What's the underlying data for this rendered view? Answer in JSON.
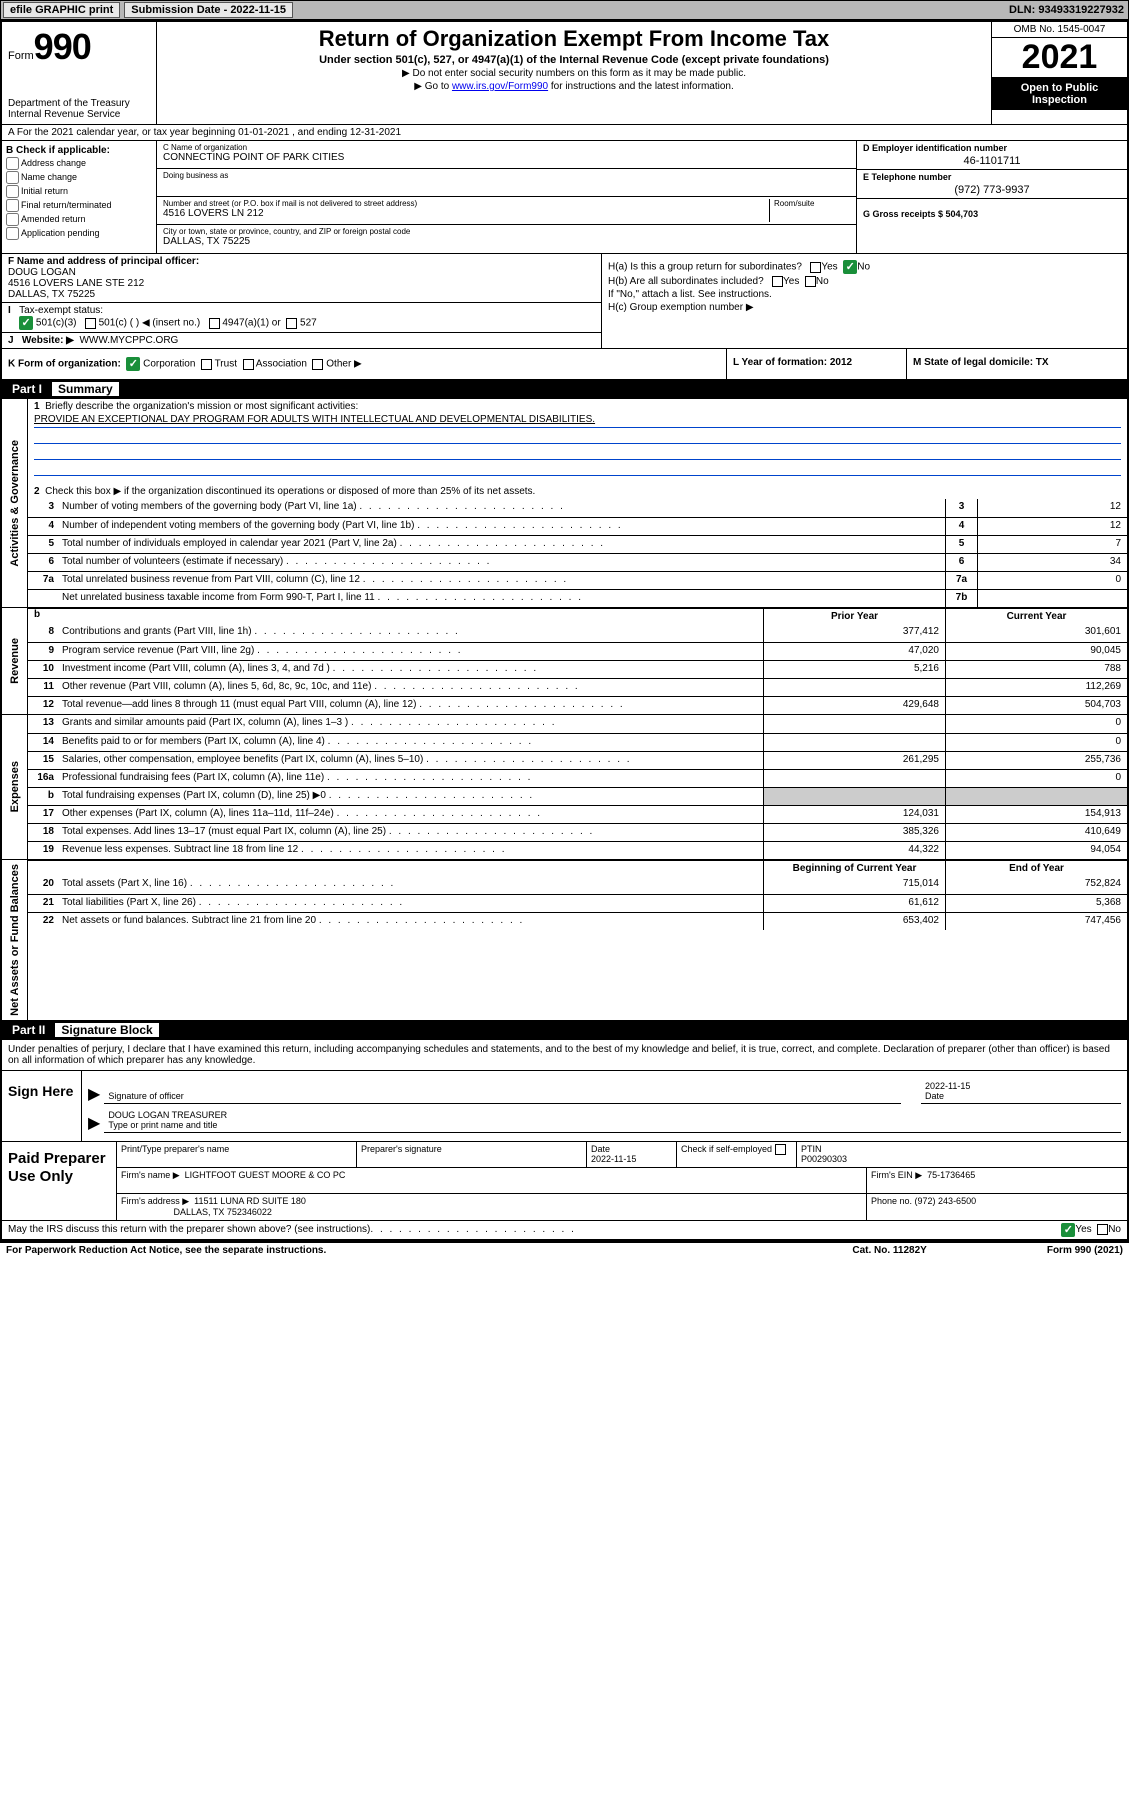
{
  "topbar": {
    "efile": "efile GRAPHIC print",
    "submission_label": "Submission Date - 2022-11-15",
    "dln_label": "DLN: 93493319227932"
  },
  "header": {
    "form_prefix": "Form",
    "form_num": "990",
    "dept": "Department of the Treasury",
    "irs": "Internal Revenue Service",
    "title": "Return of Organization Exempt From Income Tax",
    "sub": "Under section 501(c), 527, or 4947(a)(1) of the Internal Revenue Code (except private foundations)",
    "note1": "▶ Do not enter social security numbers on this form as it may be made public.",
    "note2_a": "▶ Go to ",
    "note2_link": "www.irs.gov/Form990",
    "note2_b": " for instructions and the latest information.",
    "omb": "OMB No. 1545-0047",
    "year": "2021",
    "inspect1": "Open to Public",
    "inspect2": "Inspection"
  },
  "row_a": "A For the 2021 calendar year, or tax year beginning 01-01-2021    , and ending 12-31-2021",
  "col_b": {
    "hdr": "B Check if applicable:",
    "opts": [
      "Address change",
      "Name change",
      "Initial return",
      "Final return/terminated",
      "Amended return",
      "Application pending"
    ]
  },
  "col_c": {
    "name_lbl": "C Name of organization",
    "name": "CONNECTING POINT OF PARK CITIES",
    "dba_lbl": "Doing business as",
    "dba": "",
    "addr_lbl": "Number and street (or P.O. box if mail is not delivered to street address)",
    "room_lbl": "Room/suite",
    "addr": "4516 LOVERS LN 212",
    "city_lbl": "City or town, state or province, country, and ZIP or foreign postal code",
    "city": "DALLAS, TX  75225"
  },
  "col_de": {
    "d_lbl": "D Employer identification number",
    "d_val": "46-1101711",
    "e_lbl": "E Telephone number",
    "e_val": "(972) 773-9937",
    "g_lbl": "G Gross receipts $ 504,703"
  },
  "f": {
    "lbl": "F Name and address of principal officer:",
    "name": "DOUG LOGAN",
    "addr1": "4516 LOVERS LANE STE 212",
    "addr2": "DALLAS, TX  75225"
  },
  "i": {
    "lbl": "Tax-exempt status:",
    "o1": "501(c)(3)",
    "o2": "501(c) (  ) ◀ (insert no.)",
    "o3": "4947(a)(1) or",
    "o4": "527"
  },
  "j": {
    "lbl": "Website: ▶",
    "val": "WWW.MYCPPC.ORG"
  },
  "h": {
    "ha": "H(a)  Is this a group return for subordinates?",
    "hb": "H(b)  Are all subordinates included?",
    "hb2": "If \"No,\" attach a list. See instructions.",
    "hc": "H(c)  Group exemption number ▶",
    "yes": "Yes",
    "no": "No"
  },
  "k": {
    "lbl": "K Form of organization:",
    "o1": "Corporation",
    "o2": "Trust",
    "o3": "Association",
    "o4": "Other ▶"
  },
  "l": {
    "lbl": "L Year of formation: 2012"
  },
  "m": {
    "lbl": "M State of legal domicile: TX"
  },
  "parts": {
    "p1": "Part I",
    "p1t": "Summary",
    "p2": "Part II",
    "p2t": "Signature Block"
  },
  "summary": {
    "q1": "Briefly describe the organization's mission or most significant activities:",
    "q1v": "PROVIDE AN EXCEPTIONAL DAY PROGRAM FOR ADULTS WITH INTELLECTUAL AND DEVELOPMENTAL DISABILITIES.",
    "q2": "Check this box ▶       if the organization discontinued its operations or disposed of more than 25% of its net assets.",
    "rows_gov": [
      {
        "n": "3",
        "d": "Number of voting members of the governing body (Part VI, line 1a)",
        "b": "3",
        "v": "12"
      },
      {
        "n": "4",
        "d": "Number of independent voting members of the governing body (Part VI, line 1b)",
        "b": "4",
        "v": "12"
      },
      {
        "n": "5",
        "d": "Total number of individuals employed in calendar year 2021 (Part V, line 2a)",
        "b": "5",
        "v": "7"
      },
      {
        "n": "6",
        "d": "Total number of volunteers (estimate if necessary)",
        "b": "6",
        "v": "34"
      },
      {
        "n": "7a",
        "d": "Total unrelated business revenue from Part VIII, column (C), line 12",
        "b": "7a",
        "v": "0"
      },
      {
        "n": "",
        "d": "Net unrelated business taxable income from Form 990-T, Part I, line 11",
        "b": "7b",
        "v": ""
      }
    ],
    "hdr_b": "b",
    "hdr_prior": "Prior Year",
    "hdr_curr": "Current Year",
    "rows_rev": [
      {
        "n": "8",
        "d": "Contributions and grants (Part VIII, line 1h)",
        "p": "377,412",
        "c": "301,601"
      },
      {
        "n": "9",
        "d": "Program service revenue (Part VIII, line 2g)",
        "p": "47,020",
        "c": "90,045"
      },
      {
        "n": "10",
        "d": "Investment income (Part VIII, column (A), lines 3, 4, and 7d )",
        "p": "5,216",
        "c": "788"
      },
      {
        "n": "11",
        "d": "Other revenue (Part VIII, column (A), lines 5, 6d, 8c, 9c, 10c, and 11e)",
        "p": "",
        "c": "112,269"
      },
      {
        "n": "12",
        "d": "Total revenue—add lines 8 through 11 (must equal Part VIII, column (A), line 12)",
        "p": "429,648",
        "c": "504,703"
      }
    ],
    "rows_exp": [
      {
        "n": "13",
        "d": "Grants and similar amounts paid (Part IX, column (A), lines 1–3 )",
        "p": "",
        "c": "0"
      },
      {
        "n": "14",
        "d": "Benefits paid to or for members (Part IX, column (A), line 4)",
        "p": "",
        "c": "0"
      },
      {
        "n": "15",
        "d": "Salaries, other compensation, employee benefits (Part IX, column (A), lines 5–10)",
        "p": "261,295",
        "c": "255,736"
      },
      {
        "n": "16a",
        "d": "Professional fundraising fees (Part IX, column (A), line 11e)",
        "p": "",
        "c": "0"
      },
      {
        "n": "b",
        "d": "Total fundraising expenses (Part IX, column (D), line 25) ▶0",
        "p": "SHADE",
        "c": "SHADE"
      },
      {
        "n": "17",
        "d": "Other expenses (Part IX, column (A), lines 11a–11d, 11f–24e)",
        "p": "124,031",
        "c": "154,913"
      },
      {
        "n": "18",
        "d": "Total expenses. Add lines 13–17 (must equal Part IX, column (A), line 25)",
        "p": "385,326",
        "c": "410,649"
      },
      {
        "n": "19",
        "d": "Revenue less expenses. Subtract line 18 from line 12",
        "p": "44,322",
        "c": "94,054"
      }
    ],
    "hdr_boy": "Beginning of Current Year",
    "hdr_eoy": "End of Year",
    "rows_net": [
      {
        "n": "20",
        "d": "Total assets (Part X, line 16)",
        "p": "715,014",
        "c": "752,824"
      },
      {
        "n": "21",
        "d": "Total liabilities (Part X, line 26)",
        "p": "61,612",
        "c": "5,368"
      },
      {
        "n": "22",
        "d": "Net assets or fund balances. Subtract line 21 from line 20",
        "p": "653,402",
        "c": "747,456"
      }
    ],
    "side_gov": "Activities & Governance",
    "side_rev": "Revenue",
    "side_exp": "Expenses",
    "side_net": "Net Assets or Fund Balances"
  },
  "partii": {
    "decl": "Under penalties of perjury, I declare that I have examined this return, including accompanying schedules and statements, and to the best of my knowledge and belief, it is true, correct, and complete. Declaration of preparer (other than officer) is based on all information of which preparer has any knowledge.",
    "sign_here": "Sign Here",
    "sig_officer": "Signature of officer",
    "date": "Date",
    "date_val": "2022-11-15",
    "name_title": "DOUG LOGAN  TREASURER",
    "name_title_lbl": "Type or print name and title",
    "paid": "Paid Preparer Use Only",
    "pt_name": "Print/Type preparer's name",
    "pt_sig": "Preparer's signature",
    "pt_date": "Date",
    "pt_date_v": "2022-11-15",
    "pt_check": "Check        if self-employed",
    "ptin_lbl": "PTIN",
    "ptin": "P00290303",
    "firm_name_lbl": "Firm's name    ▶",
    "firm_name": "LIGHTFOOT GUEST MOORE & CO PC",
    "firm_ein_lbl": "Firm's EIN ▶",
    "firm_ein": "75-1736465",
    "firm_addr_lbl": "Firm's address ▶",
    "firm_addr1": "11511 LUNA RD SUITE 180",
    "firm_addr2": "DALLAS, TX  752346022",
    "phone_lbl": "Phone no. (972) 243-6500"
  },
  "footer": {
    "discuss": "May the IRS discuss this return with the preparer shown above? (see instructions)",
    "paperwork": "For Paperwork Reduction Act Notice, see the separate instructions.",
    "cat": "Cat. No. 11282Y",
    "form": "Form 990 (2021)"
  }
}
